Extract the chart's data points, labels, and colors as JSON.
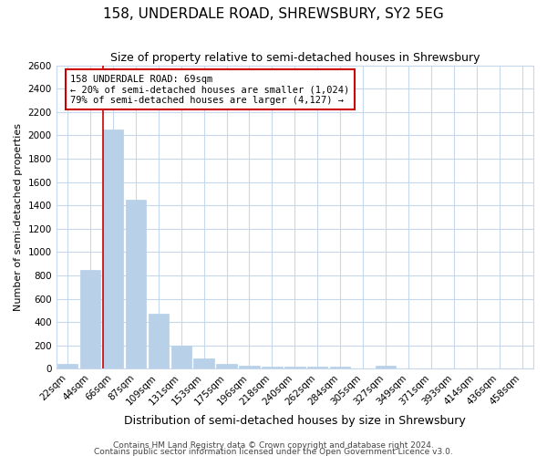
{
  "title": "158, UNDERDALE ROAD, SHREWSBURY, SY2 5EG",
  "subtitle": "Size of property relative to semi-detached houses in Shrewsbury",
  "xlabel": "Distribution of semi-detached houses by size in Shrewsbury",
  "ylabel": "Number of semi-detached properties",
  "categories": [
    "22sqm",
    "44sqm",
    "66sqm",
    "87sqm",
    "109sqm",
    "131sqm",
    "153sqm",
    "175sqm",
    "196sqm",
    "218sqm",
    "240sqm",
    "262sqm",
    "284sqm",
    "305sqm",
    "327sqm",
    "349sqm",
    "371sqm",
    "393sqm",
    "414sqm",
    "436sqm",
    "458sqm"
  ],
  "values": [
    40,
    850,
    2050,
    1450,
    470,
    200,
    90,
    45,
    30,
    20,
    20,
    20,
    20,
    0,
    25,
    0,
    0,
    0,
    0,
    0,
    0
  ],
  "bar_color": "#b8d0e8",
  "bar_edge_color": "#b8d0e8",
  "property_line_index": 2,
  "annotation_line1": "158 UNDERDALE ROAD: 69sqm",
  "annotation_line2": "← 20% of semi-detached houses are smaller (1,024)",
  "annotation_line3": "79% of semi-detached houses are larger (4,127) →",
  "ylim": [
    0,
    2600
  ],
  "yticks": [
    0,
    200,
    400,
    600,
    800,
    1000,
    1200,
    1400,
    1600,
    1800,
    2000,
    2200,
    2400,
    2600
  ],
  "footnote1": "Contains HM Land Registry data © Crown copyright and database right 2024.",
  "footnote2": "Contains public sector information licensed under the Open Government Licence v3.0.",
  "bg_color": "#ffffff",
  "plot_bg_color": "#ffffff",
  "grid_color": "#c8d8ec",
  "red_line_color": "#cc0000",
  "annotation_box_facecolor": "#ffffff",
  "annotation_box_edgecolor": "#cc0000",
  "title_fontsize": 11,
  "subtitle_fontsize": 9,
  "xlabel_fontsize": 9,
  "ylabel_fontsize": 8,
  "tick_fontsize": 7.5,
  "footnote_fontsize": 6.5
}
